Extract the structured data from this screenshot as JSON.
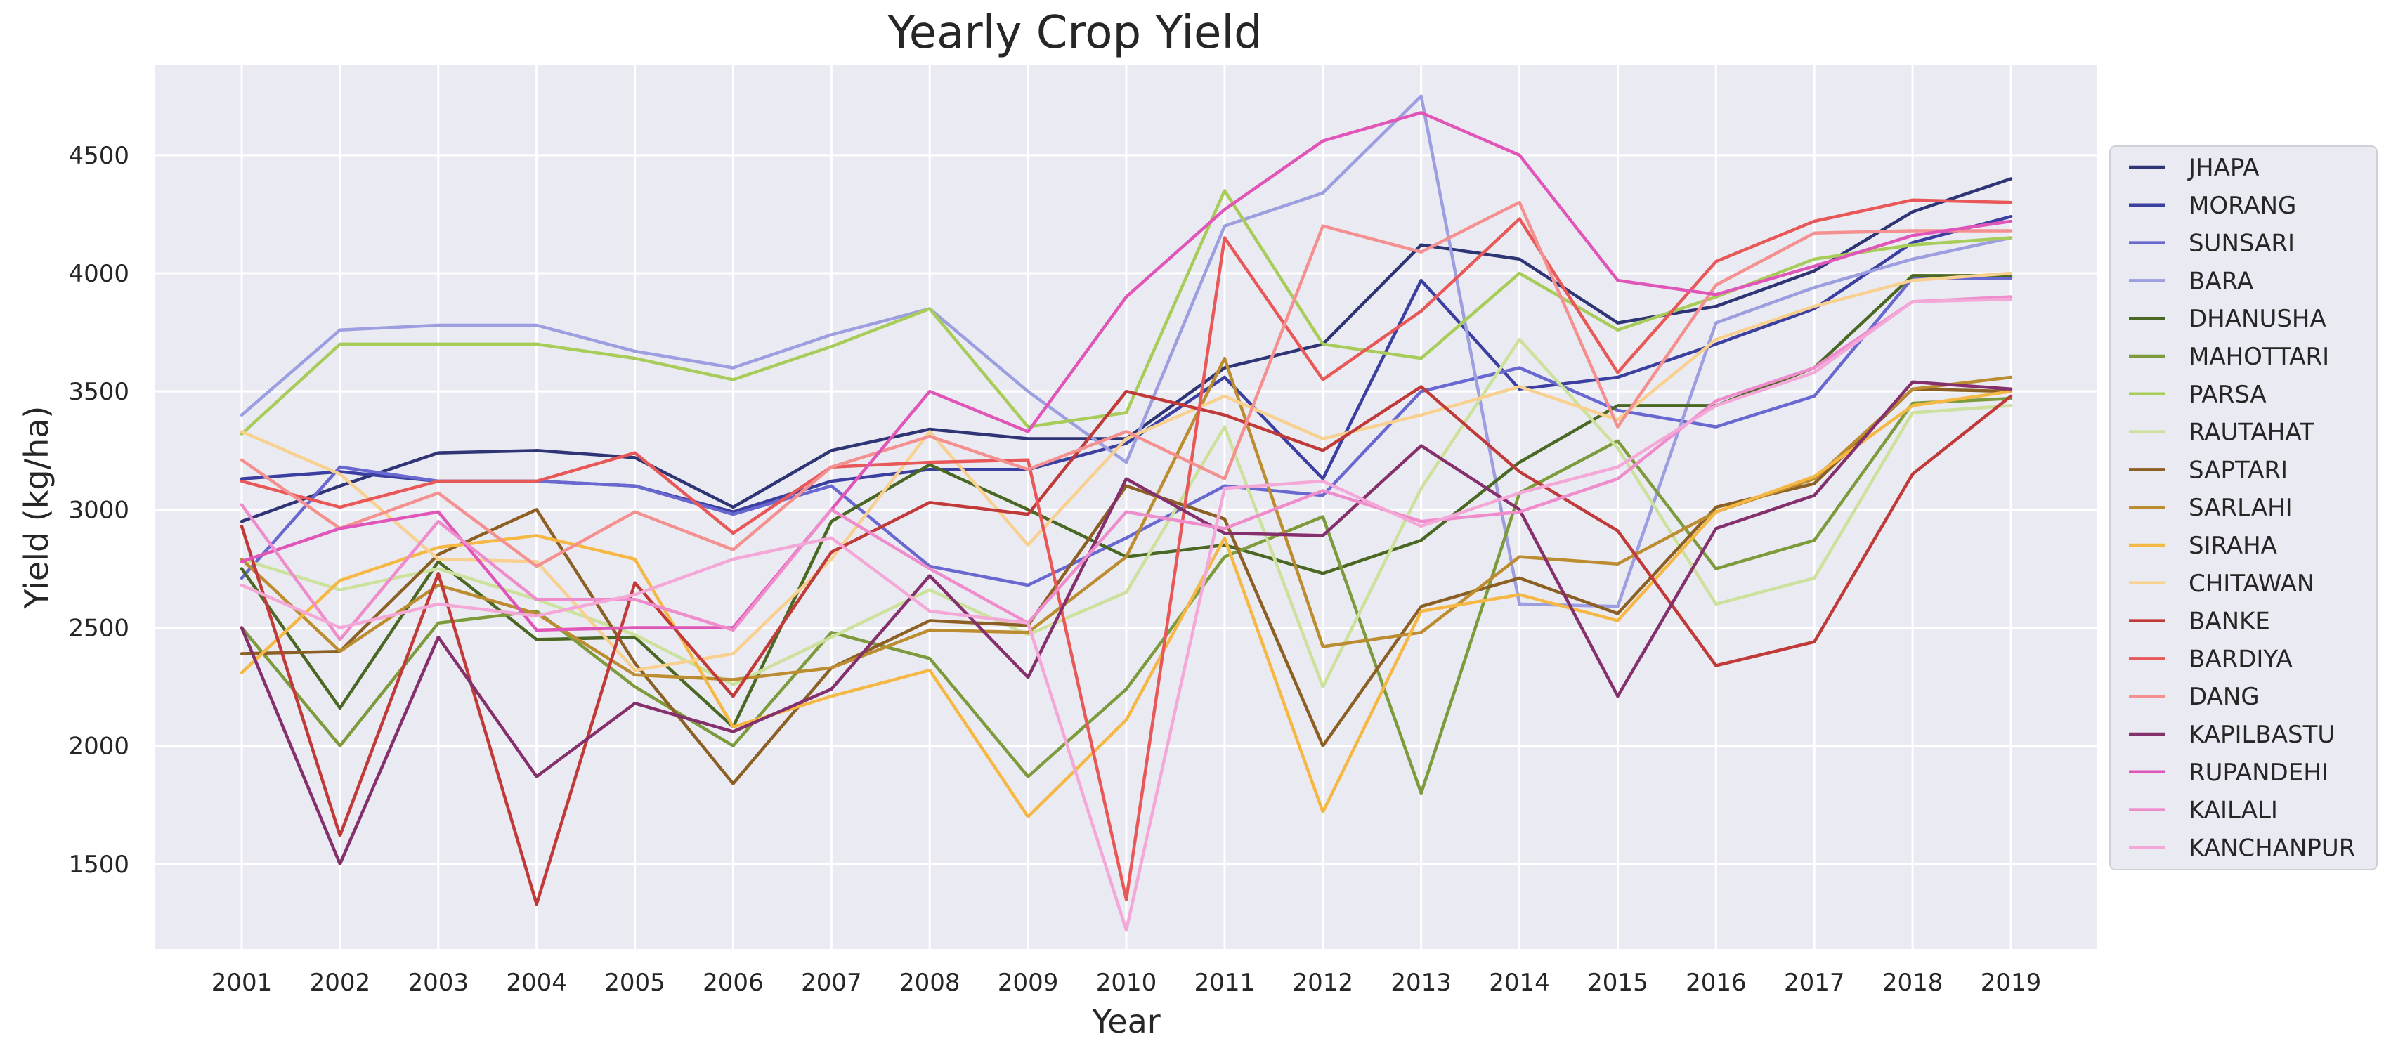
{
  "chart_data": {
    "type": "line",
    "title": "Yearly Crop Yield",
    "xlabel": "Year",
    "ylabel": "Yield (kg/ha)",
    "categories": [
      "2001",
      "2002",
      "2003",
      "2004",
      "2005",
      "2006",
      "2007",
      "2008",
      "2009",
      "2010",
      "2011",
      "2012",
      "2013",
      "2014",
      "2015",
      "2016",
      "2017",
      "2018",
      "2019"
    ],
    "yticks": [
      1500,
      2000,
      2500,
      3000,
      3500,
      4000,
      4500
    ],
    "ylim": [
      1140,
      4880
    ],
    "grid": true,
    "legend_position": "right",
    "series": [
      {
        "name": "JHAPA",
        "color": "#2f3475",
        "values": [
          2950,
          3100,
          3240,
          3250,
          3220,
          3010,
          3250,
          3340,
          3300,
          3300,
          3600,
          3700,
          4120,
          4060,
          3790,
          3860,
          4010,
          4260,
          4400
        ]
      },
      {
        "name": "MORANG",
        "color": "#3a3fa0",
        "values": [
          3130,
          3160,
          3120,
          3120,
          3100,
          2990,
          3120,
          3170,
          3170,
          3280,
          3560,
          3130,
          3970,
          3510,
          3560,
          3700,
          3850,
          4130,
          4240
        ]
      },
      {
        "name": "SUNSARI",
        "color": "#6868d0",
        "values": [
          2710,
          3180,
          3120,
          3120,
          3100,
          2980,
          3100,
          2760,
          2680,
          2880,
          3100,
          3060,
          3500,
          3600,
          3420,
          3350,
          3480,
          3980,
          3980
        ]
      },
      {
        "name": "BARA",
        "color": "#9c9ee0",
        "values": [
          3400,
          3760,
          3780,
          3780,
          3670,
          3600,
          3740,
          3850,
          3500,
          3200,
          4200,
          4340,
          4750,
          2600,
          2590,
          3790,
          3940,
          4060,
          4150
        ]
      },
      {
        "name": "DHANUSHA",
        "color": "#4a6824",
        "values": [
          2750,
          2160,
          2780,
          2450,
          2460,
          2080,
          2950,
          3190,
          3000,
          2800,
          2850,
          2730,
          2870,
          3200,
          3440,
          3440,
          3600,
          3990,
          3990
        ]
      },
      {
        "name": "MAHOTTARI",
        "color": "#7d9a3c",
        "values": [
          2500,
          2000,
          2520,
          2570,
          2250,
          2000,
          2480,
          2370,
          1870,
          2240,
          2800,
          2970,
          1800,
          3070,
          3290,
          2750,
          2870,
          3450,
          3470
        ]
      },
      {
        "name": "PARSA",
        "color": "#a8cc5a",
        "values": [
          3320,
          3700,
          3700,
          3700,
          3640,
          3550,
          3690,
          3850,
          3350,
          3410,
          4350,
          3700,
          3640,
          4000,
          3760,
          3900,
          4060,
          4120,
          4150
        ]
      },
      {
        "name": "RAUTAHAT",
        "color": "#cce19c",
        "values": [
          2790,
          2660,
          2750,
          2620,
          2470,
          2260,
          2460,
          2660,
          2470,
          2650,
          3350,
          2250,
          3090,
          3720,
          3260,
          2600,
          2710,
          3410,
          3440
        ]
      },
      {
        "name": "SAPTARI",
        "color": "#8c6024",
        "values": [
          2390,
          2400,
          2810,
          3000,
          2350,
          1840,
          2330,
          2530,
          2510,
          3100,
          2960,
          2000,
          2590,
          2710,
          2560,
          3010,
          3110,
          3510,
          3500
        ]
      },
      {
        "name": "SARLAHI",
        "color": "#bc8c30",
        "values": [
          2790,
          2400,
          2680,
          2560,
          2300,
          2280,
          2330,
          2490,
          2480,
          2800,
          3640,
          2420,
          2480,
          2800,
          2770,
          2990,
          3130,
          3510,
          3560
        ]
      },
      {
        "name": "SIRAHA",
        "color": "#f5b845",
        "values": [
          2310,
          2700,
          2840,
          2890,
          2790,
          2080,
          2210,
          2320,
          1700,
          2110,
          2880,
          1720,
          2570,
          2640,
          2530,
          2990,
          3140,
          3440,
          3500
        ]
      },
      {
        "name": "CHITAWAN",
        "color": "#f8d090",
        "values": [
          3330,
          3150,
          2790,
          2780,
          2320,
          2390,
          2790,
          3330,
          2850,
          3300,
          3480,
          3300,
          3400,
          3520,
          3380,
          3720,
          3860,
          3970,
          4000
        ]
      },
      {
        "name": "BANKE",
        "color": "#c03a3a",
        "values": [
          2930,
          1620,
          2730,
          1330,
          2690,
          2210,
          2820,
          3030,
          2980,
          3500,
          3400,
          3250,
          3520,
          3160,
          2910,
          2340,
          2440,
          3150,
          3480
        ]
      },
      {
        "name": "BARDIYA",
        "color": "#e85858",
        "values": [
          3120,
          3010,
          3120,
          3120,
          3240,
          2900,
          3180,
          3200,
          3210,
          1350,
          4150,
          3550,
          3840,
          4230,
          3580,
          4050,
          4220,
          4310,
          4300
        ]
      },
      {
        "name": "DANG",
        "color": "#f49090",
        "values": [
          3210,
          2920,
          3070,
          2760,
          2990,
          2830,
          3180,
          3310,
          3170,
          3330,
          3130,
          4200,
          4090,
          4300,
          3350,
          3950,
          4170,
          4180,
          4180
        ]
      },
      {
        "name": "KAPILBASTU",
        "color": "#84306c",
        "values": [
          2500,
          1500,
          2460,
          1870,
          2180,
          2060,
          2240,
          2720,
          2290,
          3130,
          2900,
          2890,
          3270,
          3000,
          2210,
          2920,
          3060,
          3540,
          3510
        ]
      },
      {
        "name": "RUPANDEHI",
        "color": "#e056b8",
        "values": [
          2780,
          2920,
          2990,
          2490,
          2500,
          2500,
          3000,
          3500,
          3330,
          3900,
          4270,
          4560,
          4680,
          4500,
          3970,
          3910,
          4030,
          4160,
          4220
        ]
      },
      {
        "name": "KAILALI",
        "color": "#ef8ccc",
        "values": [
          3020,
          2450,
          2950,
          2620,
          2620,
          2490,
          3000,
          2750,
          2520,
          2990,
          2920,
          3080,
          2950,
          2990,
          3130,
          3460,
          3600,
          3880,
          3900
        ]
      },
      {
        "name": "KANCHANPUR",
        "color": "#f4a8d8",
        "values": [
          2680,
          2500,
          2600,
          2550,
          2640,
          2790,
          2880,
          2570,
          2520,
          1220,
          3090,
          3120,
          2930,
          3070,
          3180,
          3440,
          3580,
          3880,
          3890
        ]
      }
    ]
  }
}
